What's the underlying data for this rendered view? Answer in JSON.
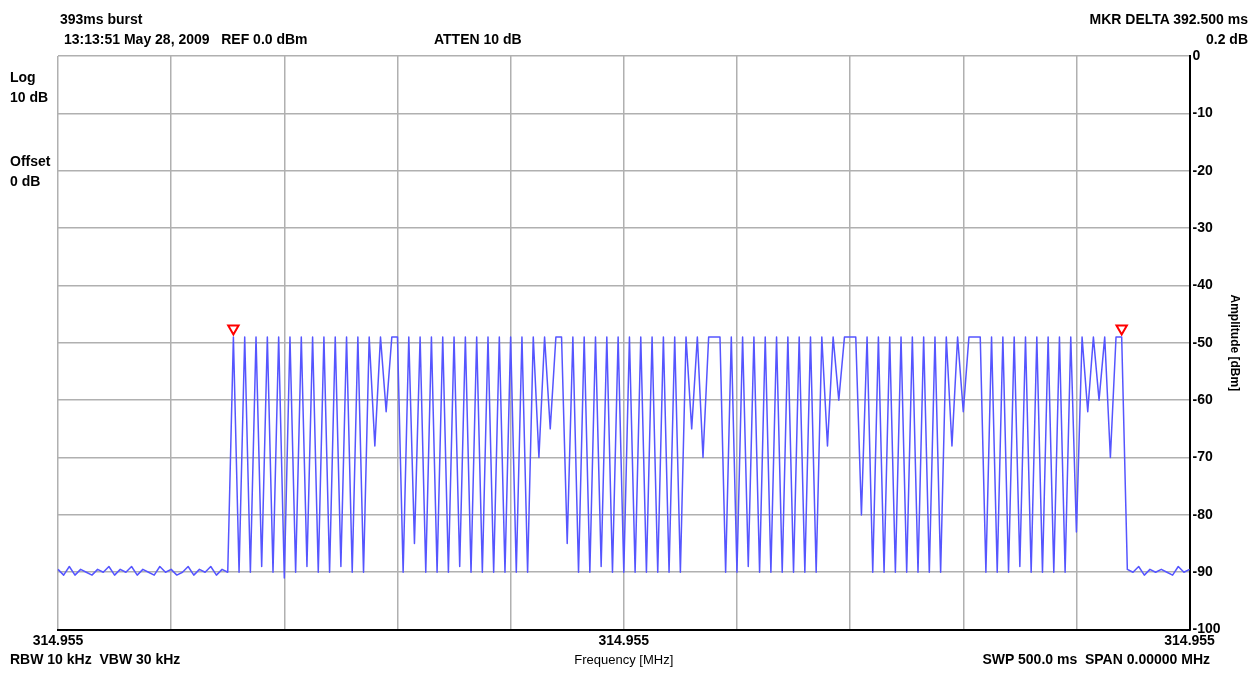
{
  "chart_data": {
    "type": "line",
    "xlabel": "Frequency [MHz]",
    "ylabel": "Amplitude [dBm]",
    "annotations": [
      "393ms burst",
      "13:13:51 May 28, 2009   REF 0.0 dBm",
      "ATTEN 10 dB",
      "MKR DELTA 392.500 ms",
      "0.2 dB",
      "Log",
      "10 dB",
      "Offset",
      "0 dB",
      "RBW 10 kHz  VBW 30 kHz",
      "SWP 500.0 ms  SPAN 0.00000 MHz"
    ],
    "categories": [
      "314.955",
      null,
      null,
      null,
      null,
      null,
      null,
      null,
      null,
      null,
      null,
      null,
      null,
      null,
      null,
      null,
      null,
      null,
      null,
      null,
      null,
      null,
      null,
      null,
      null,
      null,
      null,
      null,
      null,
      null,
      null,
      null,
      null,
      null,
      null,
      null,
      null,
      null,
      null,
      null,
      null,
      null,
      null,
      null,
      null,
      null,
      null,
      null,
      null,
      null,
      null,
      null,
      null,
      null,
      null,
      null,
      null,
      null,
      null,
      null,
      null,
      null,
      null,
      null,
      null,
      null,
      null,
      null,
      null,
      null,
      null,
      null,
      null,
      null,
      null,
      null,
      null,
      null,
      null,
      null,
      null,
      null,
      null,
      null,
      null,
      null,
      null,
      null,
      null,
      null,
      null,
      null,
      null,
      null,
      null,
      null,
      null,
      null,
      null,
      null,
      "314.955",
      null,
      null,
      null,
      null,
      null,
      null,
      null,
      null,
      null,
      null,
      null,
      null,
      null,
      null,
      null,
      null,
      null,
      null,
      null,
      null,
      null,
      null,
      null,
      null,
      null,
      null,
      null,
      null,
      null,
      null,
      null,
      null,
      null,
      null,
      null,
      null,
      null,
      null,
      null,
      null,
      null,
      null,
      null,
      null,
      null,
      null,
      null,
      null,
      null,
      null,
      null,
      null,
      null,
      null,
      null,
      null,
      null,
      null,
      null,
      null,
      null,
      null,
      null,
      null,
      null,
      null,
      null,
      null,
      null,
      null,
      null,
      null,
      null,
      null,
      null,
      null,
      null,
      null,
      null,
      null,
      null,
      null,
      null,
      null,
      null,
      null,
      null,
      null,
      null,
      null,
      null,
      null,
      null,
      null,
      null,
      null,
      null,
      null,
      null,
      "314.955"
    ],
    "ylim": [
      -100,
      0
    ],
    "yticks": [
      -100,
      -90,
      -80,
      -70,
      -60,
      -50,
      -40,
      -30,
      -20,
      -10,
      0
    ],
    "grid": true,
    "legend": false,
    "line_style": "solid",
    "series": [
      {
        "color": "#5555ff",
        "marker": "none",
        "values": [
          -89.5,
          -90.5,
          -89,
          -90.5,
          -89.5,
          -90,
          -90.5,
          -89.5,
          -90,
          -89,
          -90.5,
          -89.5,
          -90,
          -89,
          -90.5,
          -89.5,
          -90,
          -90.5,
          -89,
          -90,
          -89.5,
          -90.5,
          -90,
          -89,
          -90.5,
          -89.5,
          -90,
          -89,
          -90.5,
          -89.5,
          -90,
          -49,
          -90,
          -49,
          -90,
          -49,
          -89,
          -49,
          -90,
          -49,
          -91,
          -49,
          -90,
          -49,
          -89,
          -49,
          -90,
          -49,
          -90,
          -49,
          -89,
          -49,
          -90,
          -49,
          -90,
          -49,
          -68,
          -49,
          -62,
          -49,
          -49,
          -90,
          -49,
          -85,
          -49,
          -90,
          -49,
          -90,
          -49,
          -90,
          -49,
          -89,
          -49,
          -90,
          -49,
          -90,
          -49,
          -90,
          -49,
          -90,
          -49,
          -90,
          -49,
          -90,
          -49,
          -70,
          -49,
          -65,
          -49,
          -49,
          -85,
          -49,
          -90,
          -49,
          -90,
          -49,
          -89,
          -49,
          -90,
          -49,
          -90,
          -49,
          -90,
          -49,
          -90,
          -49,
          -90,
          -49,
          -90,
          -49,
          -90,
          -49,
          -65,
          -49,
          -70,
          -49,
          -49,
          -49,
          -90,
          -49,
          -90,
          -49,
          -89,
          -49,
          -90,
          -49,
          -90,
          -49,
          -90,
          -49,
          -90,
          -49,
          -90,
          -49,
          -90,
          -49,
          -68,
          -49,
          -60,
          -49,
          -49,
          -49,
          -80,
          -49,
          -90,
          -49,
          -90,
          -49,
          -90,
          -49,
          -90,
          -49,
          -90,
          -49,
          -90,
          -49,
          -90,
          -49,
          -68,
          -49,
          -62,
          -49,
          -49,
          -49,
          -90,
          -49,
          -90,
          -49,
          -90,
          -49,
          -89,
          -49,
          -90,
          -49,
          -90,
          -49,
          -90,
          -49,
          -90,
          -49,
          -83,
          -49,
          -62,
          -49,
          -60,
          -49,
          -70,
          -49,
          -49,
          -89.5,
          -90,
          -89,
          -90.5,
          -89.5,
          -90,
          -89.5,
          -90,
          -90.5,
          -89,
          -90,
          -89.5
        ]
      },
      {
        "type": "scatter",
        "color": "#ff0000",
        "marker": "triangle",
        "values": [
          null,
          null,
          null,
          null,
          null,
          null,
          null,
          null,
          null,
          null,
          null,
          null,
          null,
          null,
          null,
          null,
          null,
          null,
          null,
          null,
          null,
          null,
          null,
          null,
          null,
          null,
          null,
          null,
          null,
          null,
          null,
          -47.5,
          null,
          null,
          null,
          null,
          null,
          null,
          null,
          null,
          null,
          null,
          null,
          null,
          null,
          null,
          null,
          null,
          null,
          null,
          null,
          null,
          null,
          null,
          null,
          null,
          null,
          null,
          null,
          null,
          null,
          null,
          null,
          null,
          null,
          null,
          null,
          null,
          null,
          null,
          null,
          null,
          null,
          null,
          null,
          null,
          null,
          null,
          null,
          null,
          null,
          null,
          null,
          null,
          null,
          null,
          null,
          null,
          null,
          null,
          null,
          null,
          null,
          null,
          null,
          null,
          null,
          null,
          null,
          null,
          null,
          null,
          null,
          null,
          null,
          null,
          null,
          null,
          null,
          null,
          null,
          null,
          null,
          null,
          null,
          null,
          null,
          null,
          null,
          null,
          null,
          null,
          null,
          null,
          null,
          null,
          null,
          null,
          null,
          null,
          null,
          null,
          null,
          null,
          null,
          null,
          null,
          null,
          null,
          null,
          null,
          null,
          null,
          null,
          null,
          null,
          null,
          null,
          null,
          null,
          null,
          null,
          null,
          null,
          null,
          null,
          null,
          null,
          null,
          null,
          null,
          null,
          null,
          null,
          null,
          null,
          null,
          null,
          null,
          null,
          null,
          null,
          null,
          null,
          null,
          null,
          null,
          null,
          null,
          null,
          null,
          null,
          null,
          null,
          null,
          null,
          null,
          null,
          -47.5,
          null,
          null,
          null,
          null,
          null,
          null,
          null,
          null,
          null,
          null,
          null,
          null
        ]
      }
    ]
  }
}
